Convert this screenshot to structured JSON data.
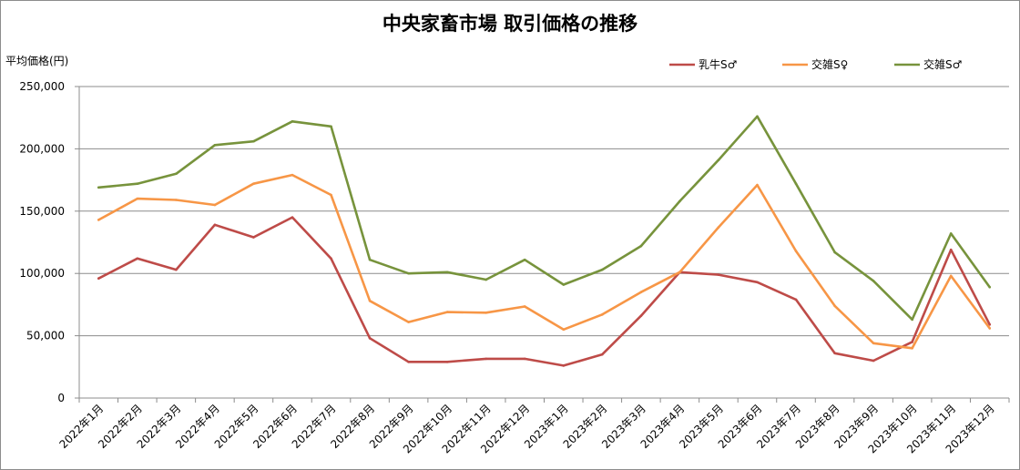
{
  "chart_data": {
    "type": "line",
    "title": "中央家畜市場 取引価格の推移",
    "ylabel": "平均価格(円)",
    "xlabel": "",
    "ylim": [
      0,
      250000
    ],
    "yticks": [
      0,
      50000,
      100000,
      150000,
      200000,
      250000
    ],
    "ytick_labels": [
      "0",
      "50,000",
      "100,000",
      "150,000",
      "200,000",
      "250,000"
    ],
    "grid": true,
    "legend_position": "top-right",
    "categories": [
      "2022年1月",
      "2022年2月",
      "2022年3月",
      "2022年4月",
      "2022年5月",
      "2022年6月",
      "2022年7月",
      "2022年8月",
      "2022年9月",
      "2022年10月",
      "2022年11月",
      "2022年12月",
      "2023年1月",
      "2023年2月",
      "2023年3月",
      "2023年4月",
      "2023年5月",
      "2023年6月",
      "2023年7月",
      "2023年8月",
      "2023年9月",
      "2023年10月",
      "2023年11月",
      "2023年12月"
    ],
    "series": [
      {
        "name": "乳牛S♂",
        "color": "#be4b48",
        "values": [
          96000,
          112000,
          103000,
          139000,
          129000,
          145000,
          112000,
          48000,
          29000,
          29000,
          31500,
          31500,
          26000,
          35000,
          66000,
          101000,
          99000,
          93000,
          79000,
          36000,
          30000,
          45000,
          119000,
          59000
        ]
      },
      {
        "name": "交雑S♀",
        "color": "#f79646",
        "values": [
          143000,
          160000,
          159000,
          155000,
          172000,
          179000,
          163000,
          78000,
          61000,
          69000,
          68500,
          73500,
          55000,
          67000,
          85000,
          101000,
          137000,
          171000,
          118000,
          74000,
          44000,
          40000,
          98000,
          56000
        ]
      },
      {
        "name": "交雑S♂",
        "color": "#77933c",
        "values": [
          169000,
          172000,
          180000,
          203000,
          206000,
          222000,
          218000,
          111000,
          100000,
          101000,
          95000,
          111000,
          91000,
          103000,
          122000,
          158000,
          191000,
          226000,
          172000,
          117000,
          94000,
          63000,
          132000,
          89000
        ]
      }
    ]
  }
}
